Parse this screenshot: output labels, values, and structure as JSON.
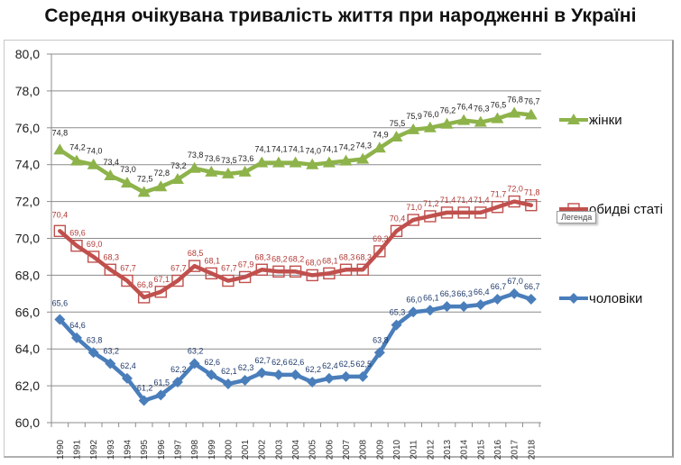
{
  "chart_data": {
    "type": "line",
    "title": "Середня очікувана тривалість життя при народженні в Україні",
    "xlabel": "",
    "ylabel": "",
    "ylim": [
      60.0,
      80.0
    ],
    "y_ticks": [
      "60,0",
      "62,0",
      "64,0",
      "66,0",
      "68,0",
      "70,0",
      "72,0",
      "74,0",
      "76,0",
      "78,0",
      "80,0"
    ],
    "y_tick_values": [
      60,
      62,
      64,
      66,
      68,
      70,
      72,
      74,
      76,
      78,
      80
    ],
    "grid": true,
    "legend_position": "right",
    "categories": [
      "1990",
      "1991",
      "1992",
      "1993",
      "1994",
      "1995",
      "1996",
      "1997",
      "1998",
      "1999",
      "2000",
      "2001",
      "2002",
      "2003",
      "2004",
      "2005",
      "2006",
      "2007",
      "2008",
      "2009",
      "2010",
      "2011",
      "2012",
      "2013",
      "2014",
      "2015",
      "2016",
      "2017",
      "2018"
    ],
    "series": [
      {
        "name": "жінки",
        "color": "#8db34a",
        "label_color": "#222222",
        "marker": "triangle",
        "values": [
          74.8,
          74.2,
          74.0,
          73.4,
          73.0,
          72.5,
          72.8,
          73.2,
          73.8,
          73.6,
          73.5,
          73.6,
          74.1,
          74.1,
          74.1,
          74.0,
          74.1,
          74.2,
          74.3,
          74.9,
          75.5,
          75.9,
          76.0,
          76.2,
          76.4,
          76.3,
          76.5,
          76.8,
          76.7
        ]
      },
      {
        "name": "обидві статі",
        "color": "#c0504d",
        "label_color": "#b03a36",
        "marker": "square",
        "values": [
          70.4,
          69.6,
          69.0,
          68.3,
          67.7,
          66.8,
          67.1,
          67.7,
          68.5,
          68.1,
          67.7,
          67.9,
          68.3,
          68.2,
          68.2,
          68.0,
          68.1,
          68.3,
          68.3,
          69.3,
          70.4,
          71.0,
          71.2,
          71.4,
          71.4,
          71.4,
          71.7,
          72.0,
          71.8
        ]
      },
      {
        "name": "чоловіки",
        "color": "#4a7ebb",
        "label_color": "#1f3a6b",
        "marker": "diamond",
        "values": [
          65.6,
          64.6,
          63.8,
          63.2,
          62.4,
          61.2,
          61.5,
          62.2,
          63.2,
          62.6,
          62.1,
          62.3,
          62.7,
          62.6,
          62.6,
          62.2,
          62.4,
          62.5,
          62.5,
          63.8,
          65.3,
          66.0,
          66.1,
          66.3,
          66.3,
          66.4,
          66.7,
          67.0,
          66.7
        ]
      }
    ]
  },
  "tooltip": {
    "text": "Легенда"
  }
}
